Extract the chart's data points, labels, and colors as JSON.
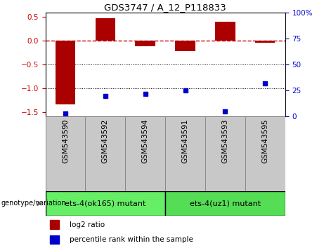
{
  "title": "GDS3747 / A_12_P118833",
  "samples": [
    "GSM543590",
    "GSM543592",
    "GSM543594",
    "GSM543591",
    "GSM543593",
    "GSM543595"
  ],
  "log2_ratio": [
    -1.35,
    0.47,
    -0.12,
    -0.22,
    0.4,
    -0.04
  ],
  "percentile_rank": [
    3,
    20,
    22,
    25,
    5,
    32
  ],
  "ylim_left": [
    -1.6,
    0.6
  ],
  "ylim_right": [
    0,
    100
  ],
  "groups": [
    {
      "label": "ets-4(ok165) mutant",
      "samples_idx": [
        0,
        1,
        2
      ],
      "color": "#66EE66"
    },
    {
      "label": "ets-4(uz1) mutant",
      "samples_idx": [
        3,
        4,
        5
      ],
      "color": "#66EE66"
    }
  ],
  "bar_color": "#AA0000",
  "dot_color": "#0000CC",
  "hline_color": "#CC0000",
  "dotted_line_color": "#000000",
  "left_axis_color": "#CC0000",
  "right_axis_color": "#0000CC",
  "background_color": "#ffffff",
  "plot_bg_color": "#ffffff",
  "group_label": "genotype/variation",
  "legend_labels": [
    "log2 ratio",
    "percentile rank within the sample"
  ]
}
